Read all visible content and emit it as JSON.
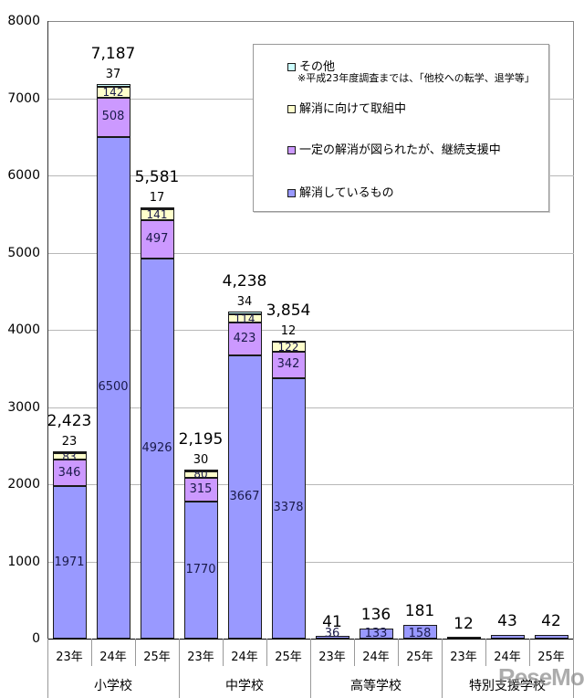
{
  "chart_data": {
    "type": "bar",
    "stacked": true,
    "title": "",
    "xlabel": "",
    "ylabel": "",
    "ylim": [
      0,
      8000
    ],
    "yticks": [
      0,
      1000,
      2000,
      3000,
      4000,
      5000,
      6000,
      7000,
      8000
    ],
    "grid": true,
    "legend_position": "top-right (inside plot)",
    "groups": [
      "小学校",
      "中学校",
      "高等学校",
      "特別支援学校"
    ],
    "categories": [
      "23年",
      "24年",
      "25年",
      "23年",
      "24年",
      "25年",
      "23年",
      "24年",
      "25年",
      "23年",
      "24年",
      "25年"
    ],
    "category_groups": [
      "小学校",
      "小学校",
      "小学校",
      "中学校",
      "中学校",
      "中学校",
      "高等学校",
      "高等学校",
      "高等学校",
      "特別支援学校",
      "特別支援学校",
      "特別支援学校"
    ],
    "series": [
      {
        "name": "解消しているもの",
        "color": "#9999ff",
        "values": [
          1971,
          6500,
          4926,
          1770,
          3667,
          3378,
          36,
          133,
          158,
          null,
          null,
          null
        ]
      },
      {
        "name": "一定の解消が図られたが、継続支援中",
        "color": "#cc99ff",
        "values": [
          346,
          508,
          497,
          315,
          423,
          342,
          null,
          null,
          null,
          null,
          null,
          null
        ]
      },
      {
        "name": "解消に向けて取組中",
        "color": "#ffffcc",
        "values": [
          83,
          142,
          141,
          80,
          114,
          122,
          null,
          null,
          null,
          null,
          null,
          null
        ]
      },
      {
        "name": "その他",
        "color": "#ccffff",
        "values": [
          23,
          37,
          17,
          30,
          34,
          12,
          null,
          null,
          null,
          null,
          null,
          null
        ]
      }
    ],
    "totals": [
      2423,
      7187,
      5581,
      2195,
      4238,
      3854,
      41,
      136,
      181,
      12,
      43,
      42
    ],
    "total_labels": [
      "2,423",
      "7,187",
      "5,581",
      "2,195",
      "4,238",
      "3,854",
      "41",
      "136",
      "181",
      "12",
      "43",
      "42"
    ],
    "legend_note": "※平成23年度調査までは、「他校への転学、退学等」"
  },
  "yaxis": {
    "ticks": [
      "8000",
      "7000",
      "6000",
      "5000",
      "4000",
      "3000",
      "2000",
      "1000",
      "0"
    ]
  },
  "legend": {
    "items": [
      {
        "label": "その他",
        "color": "#ccffff"
      },
      {
        "label": "解消に向けて取組中",
        "color": "#ffffcc"
      },
      {
        "label": "一定の解消が図られたが、継続支援中",
        "color": "#cc99ff"
      },
      {
        "label": "解消しているもの",
        "color": "#9999ff"
      }
    ],
    "note": "※平成23年度調査までは、「他校への転学、退学等」"
  },
  "watermark": "ReseMom"
}
